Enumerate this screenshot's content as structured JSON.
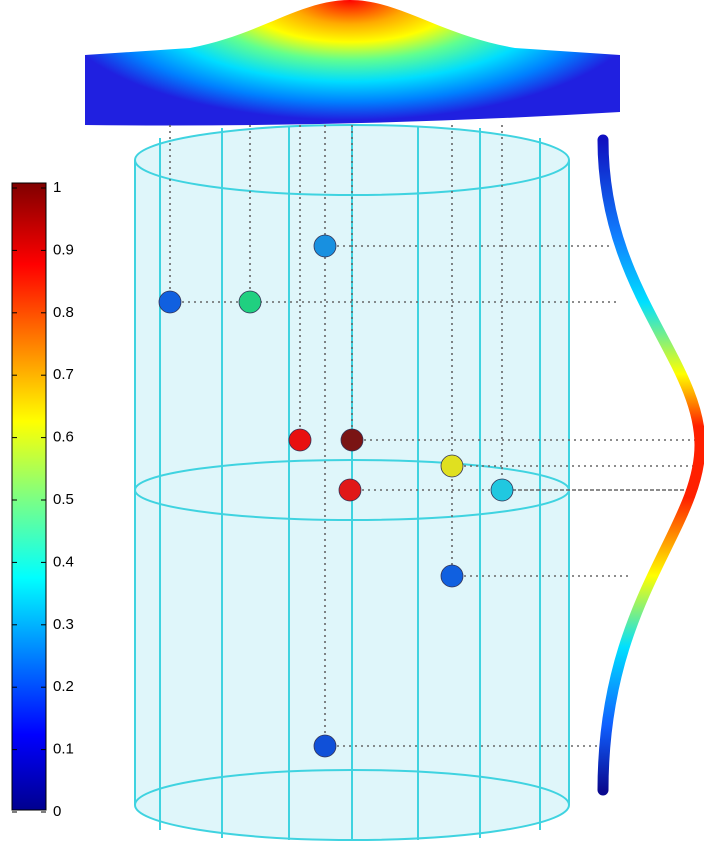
{
  "colorbar": {
    "ticks": [
      0,
      0.1,
      0.2,
      0.3,
      0.4,
      0.5,
      0.6,
      0.7,
      0.8,
      0.9,
      1
    ]
  }
}
